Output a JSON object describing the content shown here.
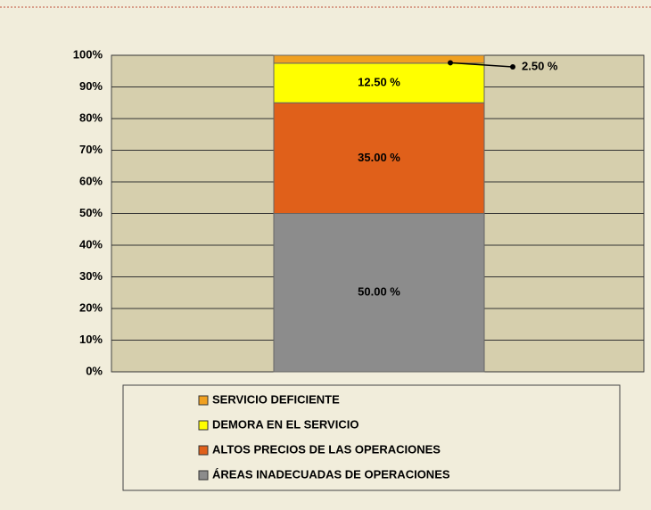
{
  "chart_data": {
    "type": "stacked_bar",
    "categories": [
      null
    ],
    "series": [
      {
        "name": "ÁREAS INADECUADAS DE OPERACIONES",
        "color": "#8c8c8c",
        "values": [
          50
        ],
        "value_labels": [
          "50.00 %"
        ]
      },
      {
        "name": "ALTOS PRECIOS DE LAS OPERACIONES",
        "color": "#e0601a",
        "values": [
          35
        ],
        "value_labels": [
          "35.00 %"
        ]
      },
      {
        "name": "DEMORA EN EL SERVICIO",
        "color": "#ffff00",
        "values": [
          12.5
        ],
        "value_labels": [
          "12.50 %"
        ]
      },
      {
        "name": "SERVICIO DEFICIENTE",
        "color": "#f0a020",
        "values": [
          2.5
        ],
        "value_labels": [
          "2.50 %"
        ]
      }
    ],
    "ylim": [
      0,
      100
    ],
    "yticks": [
      {
        "value": 0,
        "label": "0%"
      },
      {
        "value": 10,
        "label": "10%"
      },
      {
        "value": 20,
        "label": "20%"
      },
      {
        "value": 30,
        "label": "30%"
      },
      {
        "value": 40,
        "label": "40%"
      },
      {
        "value": 50,
        "label": "50%"
      },
      {
        "value": 60,
        "label": "60%"
      },
      {
        "value": 70,
        "label": "70%"
      },
      {
        "value": 80,
        "label": "80%"
      },
      {
        "value": 90,
        "label": "90%"
      },
      {
        "value": 100,
        "label": "100%"
      }
    ],
    "grid": true
  }
}
